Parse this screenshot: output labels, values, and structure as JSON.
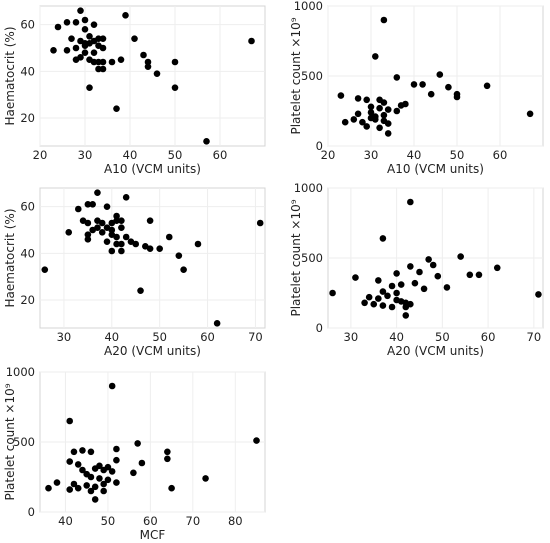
{
  "chart_data": [
    {
      "type": "scatter",
      "xlabel": "A10 (VCM units)",
      "ylabel": "Haematocrit (%)",
      "xlim": [
        20,
        70
      ],
      "ylim": [
        8,
        68
      ],
      "xticks": [
        20,
        30,
        40,
        50,
        60
      ],
      "yticks": [
        20,
        40,
        60
      ],
      "grid": true,
      "points": [
        [
          24,
          59
        ],
        [
          26,
          61
        ],
        [
          28,
          61
        ],
        [
          30,
          62
        ],
        [
          29,
          66
        ],
        [
          32,
          60
        ],
        [
          30,
          58
        ],
        [
          31,
          55
        ],
        [
          27,
          54
        ],
        [
          29,
          53
        ],
        [
          30,
          52
        ],
        [
          32,
          53
        ],
        [
          33,
          54
        ],
        [
          34,
          54
        ],
        [
          28,
          50
        ],
        [
          30,
          51
        ],
        [
          31,
          52
        ],
        [
          33,
          51
        ],
        [
          34,
          50
        ],
        [
          23,
          49
        ],
        [
          26,
          49
        ],
        [
          30,
          48
        ],
        [
          32,
          48
        ],
        [
          29,
          46
        ],
        [
          31,
          45
        ],
        [
          28,
          45
        ],
        [
          32,
          44
        ],
        [
          33,
          44
        ],
        [
          34,
          44
        ],
        [
          33,
          41
        ],
        [
          34,
          41
        ],
        [
          36,
          44
        ],
        [
          38,
          45
        ],
        [
          39,
          64
        ],
        [
          41,
          54
        ],
        [
          43,
          47
        ],
        [
          44,
          44
        ],
        [
          44,
          42
        ],
        [
          46,
          39
        ],
        [
          50,
          44
        ],
        [
          50,
          33
        ],
        [
          31,
          33
        ],
        [
          37,
          24
        ],
        [
          57,
          10
        ],
        [
          67,
          53
        ]
      ]
    },
    {
      "type": "scatter",
      "xlabel": "A10 (VCM units)",
      "ylabel": "Platelet count ×10⁹",
      "xlim": [
        20,
        70
      ],
      "ylim": [
        0,
        1000
      ],
      "xticks": [
        20,
        30,
        40,
        50,
        60
      ],
      "yticks": [
        0,
        500,
        1000
      ],
      "grid": true,
      "points": [
        [
          33,
          900
        ],
        [
          31,
          640
        ],
        [
          46,
          510
        ],
        [
          36,
          490
        ],
        [
          57,
          430
        ],
        [
          40,
          440
        ],
        [
          42,
          440
        ],
        [
          48,
          420
        ],
        [
          50,
          370
        ],
        [
          50,
          350
        ],
        [
          37,
          290
        ],
        [
          44,
          370
        ],
        [
          23,
          360
        ],
        [
          27,
          340
        ],
        [
          29,
          330
        ],
        [
          32,
          330
        ],
        [
          33,
          310
        ],
        [
          30,
          280
        ],
        [
          32,
          270
        ],
        [
          34,
          260
        ],
        [
          27,
          230
        ],
        [
          30,
          200
        ],
        [
          31,
          190
        ],
        [
          33,
          180
        ],
        [
          28,
          170
        ],
        [
          24,
          170
        ],
        [
          26,
          190
        ],
        [
          29,
          140
        ],
        [
          32,
          130
        ],
        [
          34,
          160
        ],
        [
          34,
          90
        ],
        [
          36,
          250
        ],
        [
          38,
          300
        ],
        [
          30,
          240
        ],
        [
          31,
          210
        ],
        [
          33,
          220
        ],
        [
          67,
          230
        ]
      ]
    },
    {
      "type": "scatter",
      "xlabel": "A20 (VCM units)",
      "ylabel": "Haematocrit (%)",
      "xlim": [
        25,
        72
      ],
      "ylim": [
        8,
        68
      ],
      "xticks": [
        30,
        40,
        50,
        60,
        70
      ],
      "yticks": [
        20,
        40,
        60
      ],
      "grid": true,
      "points": [
        [
          37,
          66
        ],
        [
          35,
          61
        ],
        [
          36,
          61
        ],
        [
          39,
          60
        ],
        [
          43,
          64
        ],
        [
          33,
          59
        ],
        [
          34,
          54
        ],
        [
          35,
          53
        ],
        [
          37,
          54
        ],
        [
          38,
          53
        ],
        [
          40,
          53
        ],
        [
          41,
          54
        ],
        [
          42,
          54
        ],
        [
          48,
          54
        ],
        [
          36,
          50
        ],
        [
          37,
          51
        ],
        [
          39,
          51
        ],
        [
          40,
          50
        ],
        [
          42,
          51
        ],
        [
          31,
          49
        ],
        [
          35,
          48
        ],
        [
          38,
          49
        ],
        [
          40,
          48
        ],
        [
          41,
          47
        ],
        [
          43,
          47
        ],
        [
          35,
          46
        ],
        [
          39,
          45
        ],
        [
          41,
          44
        ],
        [
          42,
          44
        ],
        [
          44,
          45
        ],
        [
          45,
          44
        ],
        [
          47,
          43
        ],
        [
          48,
          42
        ],
        [
          50,
          42
        ],
        [
          40,
          41
        ],
        [
          42,
          41
        ],
        [
          52,
          47
        ],
        [
          54,
          39
        ],
        [
          55,
          33
        ],
        [
          58,
          44
        ],
        [
          26,
          33
        ],
        [
          46,
          24
        ],
        [
          62,
          10
        ],
        [
          71,
          53
        ],
        [
          41,
          56
        ]
      ]
    },
    {
      "type": "scatter",
      "xlabel": "A20 (VCM units)",
      "ylabel": "Platelet count ×10⁹",
      "xlim": [
        25,
        72
      ],
      "ylim": [
        0,
        1000
      ],
      "xticks": [
        30,
        40,
        50,
        60,
        70
      ],
      "yticks": [
        0,
        500,
        1000
      ],
      "grid": true,
      "points": [
        [
          43,
          900
        ],
        [
          37,
          640
        ],
        [
          47,
          490
        ],
        [
          54,
          510
        ],
        [
          48,
          450
        ],
        [
          43,
          440
        ],
        [
          62,
          430
        ],
        [
          45,
          400
        ],
        [
          56,
          380
        ],
        [
          40,
          390
        ],
        [
          36,
          340
        ],
        [
          39,
          300
        ],
        [
          41,
          310
        ],
        [
          44,
          320
        ],
        [
          31,
          360
        ],
        [
          46,
          280
        ],
        [
          51,
          290
        ],
        [
          49,
          370
        ],
        [
          58,
          380
        ],
        [
          26,
          250
        ],
        [
          34,
          220
        ],
        [
          36,
          210
        ],
        [
          38,
          230
        ],
        [
          40,
          200
        ],
        [
          41,
          190
        ],
        [
          42,
          180
        ],
        [
          35,
          170
        ],
        [
          37,
          160
        ],
        [
          39,
          150
        ],
        [
          42,
          150
        ],
        [
          43,
          170
        ],
        [
          33,
          180
        ],
        [
          42,
          90
        ],
        [
          71,
          240
        ],
        [
          37,
          260
        ],
        [
          40,
          250
        ]
      ]
    },
    {
      "type": "scatter",
      "xlabel": "MCF",
      "ylabel": "Platelet count ×10⁹",
      "xlim": [
        34,
        87
      ],
      "ylim": [
        0,
        1000
      ],
      "xticks": [
        40,
        50,
        60,
        70,
        80
      ],
      "yticks": [
        0,
        500,
        1000
      ],
      "grid": true,
      "points": [
        [
          51,
          900
        ],
        [
          41,
          650
        ],
        [
          57,
          490
        ],
        [
          85,
          510
        ],
        [
          64,
          430
        ],
        [
          64,
          380
        ],
        [
          52,
          450
        ],
        [
          42,
          430
        ],
        [
          44,
          440
        ],
        [
          46,
          430
        ],
        [
          41,
          360
        ],
        [
          43,
          340
        ],
        [
          48,
          330
        ],
        [
          50,
          320
        ],
        [
          52,
          370
        ],
        [
          58,
          350
        ],
        [
          44,
          300
        ],
        [
          47,
          310
        ],
        [
          49,
          300
        ],
        [
          51,
          290
        ],
        [
          56,
          280
        ],
        [
          45,
          270
        ],
        [
          46,
          250
        ],
        [
          48,
          240
        ],
        [
          50,
          230
        ],
        [
          52,
          210
        ],
        [
          38,
          210
        ],
        [
          42,
          200
        ],
        [
          45,
          190
        ],
        [
          47,
          180
        ],
        [
          49,
          200
        ],
        [
          36,
          170
        ],
        [
          41,
          160
        ],
        [
          43,
          170
        ],
        [
          46,
          150
        ],
        [
          49,
          150
        ],
        [
          47,
          90
        ],
        [
          65,
          170
        ],
        [
          73,
          240
        ]
      ]
    }
  ]
}
